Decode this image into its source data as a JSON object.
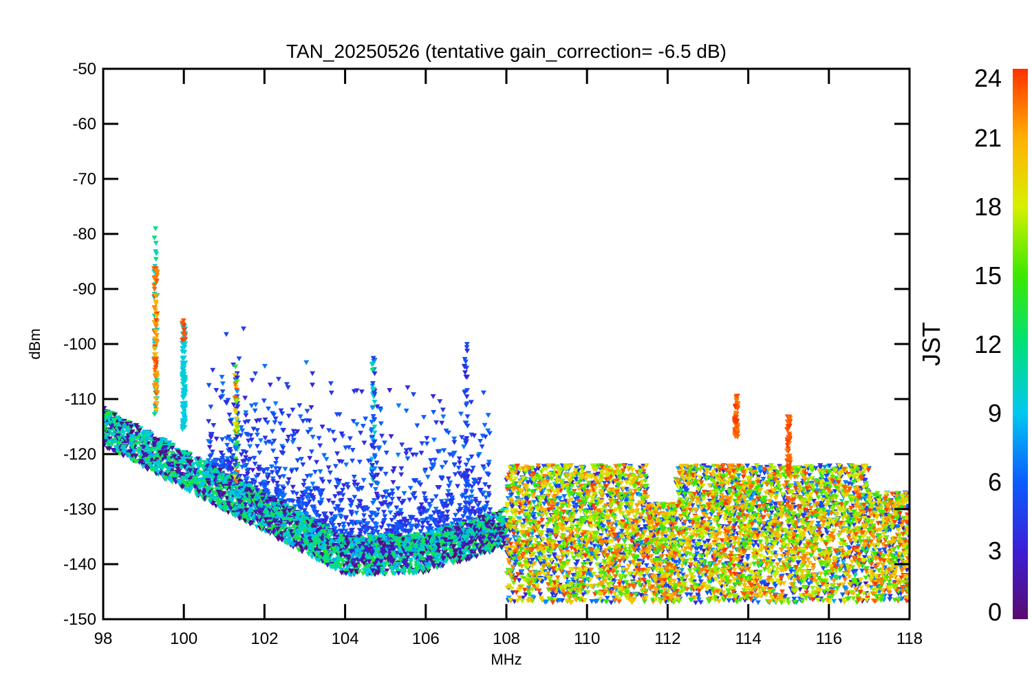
{
  "chart_data": {
    "type": "scatter",
    "title": "TAN_20250526 (tentative gain_correction= -6.5 dB)",
    "xlabel": "MHz",
    "ylabel": "dBm",
    "xlim": [
      98,
      118
    ],
    "ylim": [
      -150,
      -50
    ],
    "xticks": [
      98,
      100,
      102,
      104,
      106,
      108,
      110,
      112,
      114,
      116,
      118
    ],
    "yticks": [
      -50,
      -60,
      -70,
      -80,
      -90,
      -100,
      -110,
      -120,
      -130,
      -140,
      -150
    ],
    "colorbar": {
      "title": "JST",
      "range": [
        0,
        24
      ],
      "ticks": [
        0,
        3,
        6,
        9,
        12,
        15,
        18,
        21,
        24
      ],
      "colormap": "rainbow",
      "colors": [
        "#5a0a6e",
        "#3a1fd6",
        "#0a5cff",
        "#00c8f0",
        "#00e07a",
        "#3ce800",
        "#d8f000",
        "#ffb000",
        "#ff3000"
      ]
    },
    "marker": "inverted-triangle",
    "grid": false,
    "series_description": [
      {
        "x_range": [
          98,
          108
        ],
        "y_range": [
          -142,
          -110
        ],
        "hours": "0-24",
        "note": "baseline descending from about -115 to -140 dBm"
      },
      {
        "x_range": [
          108,
          118
        ],
        "y_range": [
          -148,
          -121
        ],
        "hours": "0-24",
        "note": "wide noise band"
      },
      {
        "x": 99.3,
        "y_range": [
          -113,
          -79
        ],
        "hours": "9-24"
      },
      {
        "x": 100.0,
        "y_range": [
          -116,
          -96
        ],
        "hours": "9-24"
      },
      {
        "x": 101.3,
        "y_range": [
          -125,
          -104
        ],
        "hours": "3-24"
      },
      {
        "x": 104.7,
        "y_range": [
          -125,
          -102
        ],
        "hours": "3-12"
      },
      {
        "x": 107.0,
        "y_range": [
          -130,
          -100
        ],
        "hours": "3-6"
      },
      {
        "x": 113.7,
        "y_range": [
          -117,
          -109
        ],
        "hours": "22-24"
      },
      {
        "x": 115.0,
        "y_range": [
          -124,
          -113
        ],
        "hours": "22-24"
      }
    ]
  }
}
